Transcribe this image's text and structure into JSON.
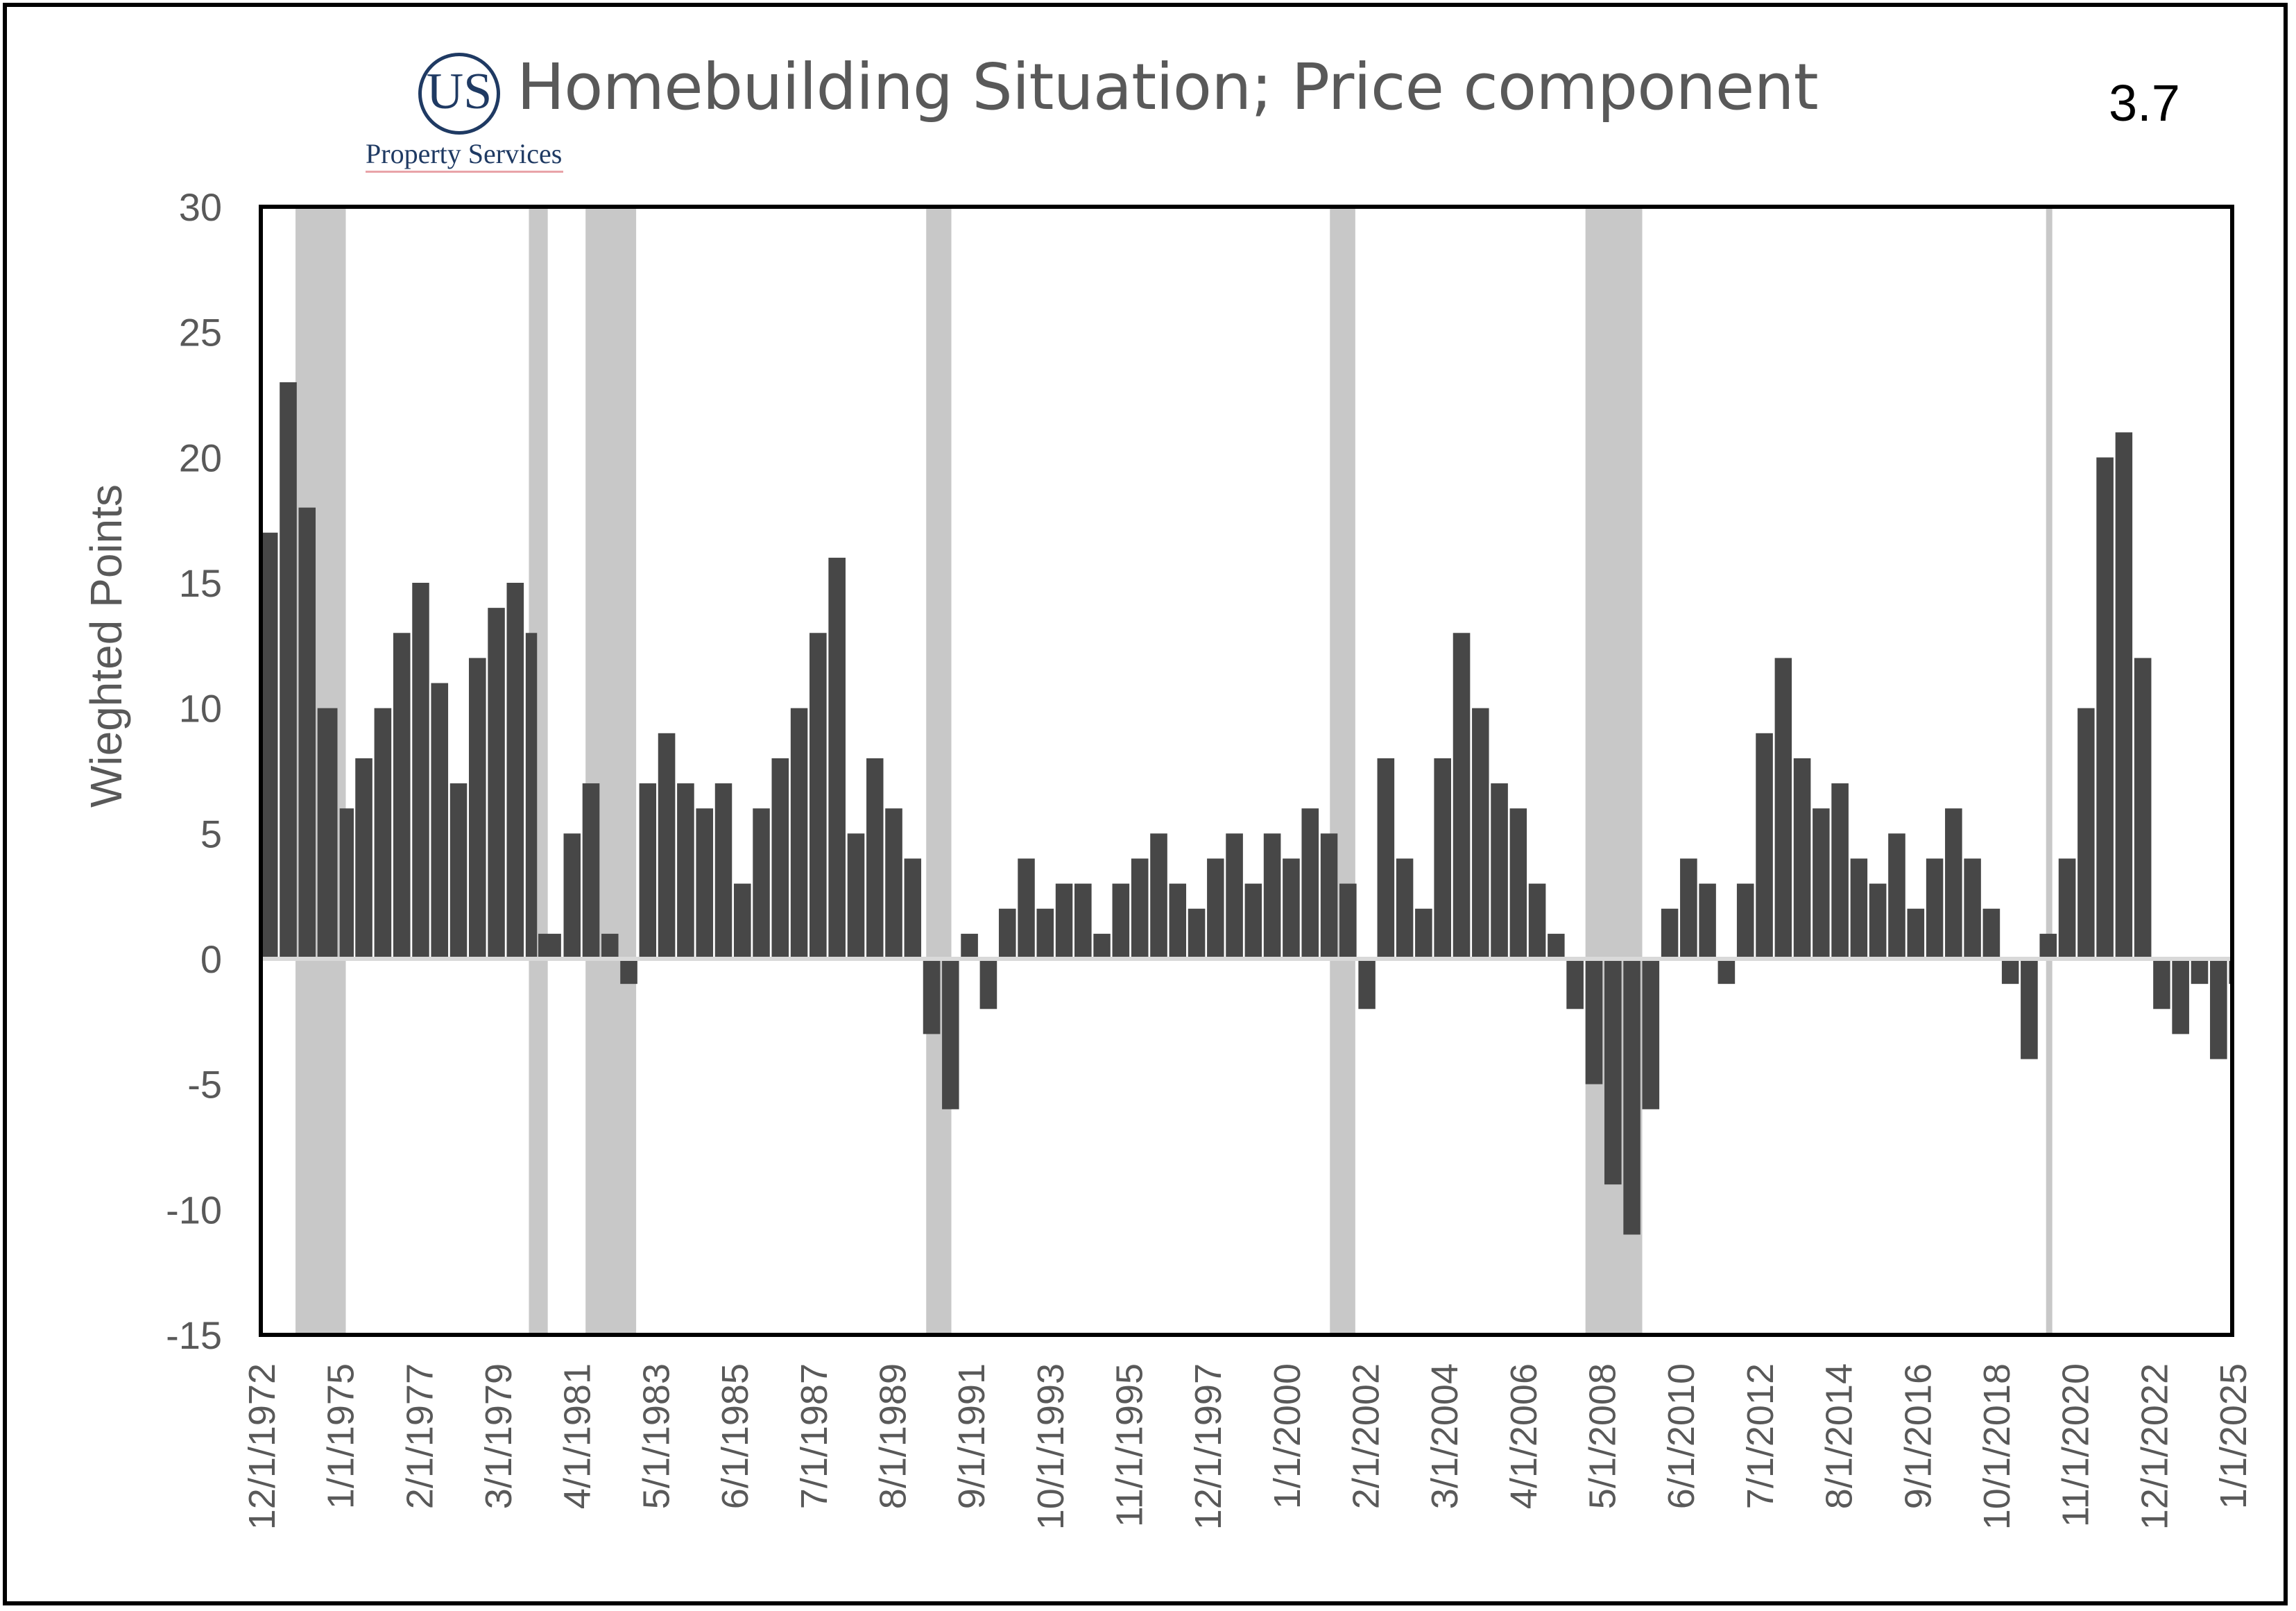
{
  "title": "Homebuilding Situation; Price component",
  "corner_value": "3.7",
  "logo": {
    "mark": "US",
    "text": "Property Services"
  },
  "colors": {
    "bars": "#474747",
    "recession": "#c8c8c8",
    "zero_line": "#d9d9d9",
    "title": "#595959",
    "logo": "#1f3a63"
  },
  "chart_data": {
    "type": "bar",
    "title": "Homebuilding Situation; Price component",
    "xlabel": "",
    "ylabel": "Wieghted Points",
    "ylim": [
      -15,
      30
    ],
    "yticks": [
      30,
      25,
      20,
      15,
      10,
      5,
      0,
      -5,
      -10,
      -15
    ],
    "grid": false,
    "x_start": "12/1/1972",
    "x_end": "1/1/2025",
    "xtick_labels": [
      "12/1/1972",
      "1/1/1975",
      "2/1/1977",
      "3/1/1979",
      "4/1/1981",
      "5/1/1983",
      "6/1/1985",
      "7/1/1987",
      "8/1/1989",
      "9/1/1991",
      "10/1/1993",
      "11/1/1995",
      "12/1/1997",
      "1/1/2000",
      "2/1/2002",
      "3/1/2004",
      "4/1/2006",
      "5/1/2008",
      "6/1/2010",
      "7/1/2012",
      "8/1/2014",
      "9/1/2016",
      "10/1/2018",
      "11/1/2020",
      "12/1/2022",
      "1/1/2025"
    ],
    "recession_bands": [
      [
        "11/1/1973",
        "3/1/1975"
      ],
      [
        "1/1/1980",
        "7/1/1980"
      ],
      [
        "7/1/1981",
        "11/1/1982"
      ],
      [
        "7/1/1990",
        "3/1/1991"
      ],
      [
        "3/1/2001",
        "11/1/2001"
      ],
      [
        "12/1/2007",
        "6/1/2009"
      ],
      [
        "2/1/2020",
        "4/1/2020"
      ]
    ],
    "series": [
      {
        "values": [
          {
            "x": "12/1/1972",
            "y": 17
          },
          {
            "x": "6/1/1973",
            "y": 23
          },
          {
            "x": "12/1/1973",
            "y": 18
          },
          {
            "x": "6/1/1974",
            "y": 10
          },
          {
            "x": "1/1/1975",
            "y": 6
          },
          {
            "x": "6/1/1975",
            "y": 8
          },
          {
            "x": "12/1/1975",
            "y": 10
          },
          {
            "x": "6/1/1976",
            "y": 13
          },
          {
            "x": "12/1/1976",
            "y": 15
          },
          {
            "x": "6/1/1977",
            "y": 11
          },
          {
            "x": "12/1/1977",
            "y": 7
          },
          {
            "x": "6/1/1978",
            "y": 12
          },
          {
            "x": "12/1/1978",
            "y": 14
          },
          {
            "x": "6/1/1979",
            "y": 15
          },
          {
            "x": "12/1/1979",
            "y": 13
          },
          {
            "x": "4/1/1980",
            "y": 1
          },
          {
            "x": "12/1/1980",
            "y": 5
          },
          {
            "x": "6/1/1981",
            "y": 7
          },
          {
            "x": "12/1/1981",
            "y": 1
          },
          {
            "x": "6/1/1982",
            "y": -1
          },
          {
            "x": "12/1/1982",
            "y": 7
          },
          {
            "x": "6/1/1983",
            "y": 9
          },
          {
            "x": "12/1/1983",
            "y": 7
          },
          {
            "x": "6/1/1984",
            "y": 6
          },
          {
            "x": "12/1/1984",
            "y": 7
          },
          {
            "x": "6/1/1985",
            "y": 3
          },
          {
            "x": "12/1/1985",
            "y": 6
          },
          {
            "x": "6/1/1986",
            "y": 8
          },
          {
            "x": "12/1/1986",
            "y": 10
          },
          {
            "x": "6/1/1987",
            "y": 13
          },
          {
            "x": "12/1/1987",
            "y": 16
          },
          {
            "x": "6/1/1988",
            "y": 5
          },
          {
            "x": "12/1/1988",
            "y": 8
          },
          {
            "x": "6/1/1989",
            "y": 6
          },
          {
            "x": "12/1/1989",
            "y": 4
          },
          {
            "x": "6/1/1990",
            "y": -3
          },
          {
            "x": "12/1/1990",
            "y": -6
          },
          {
            "x": "6/1/1991",
            "y": 1
          },
          {
            "x": "12/1/1991",
            "y": -2
          },
          {
            "x": "6/1/1992",
            "y": 2
          },
          {
            "x": "12/1/1992",
            "y": 4
          },
          {
            "x": "6/1/1993",
            "y": 2
          },
          {
            "x": "12/1/1993",
            "y": 3
          },
          {
            "x": "6/1/1994",
            "y": 3
          },
          {
            "x": "12/1/1994",
            "y": 1
          },
          {
            "x": "6/1/1995",
            "y": 3
          },
          {
            "x": "12/1/1995",
            "y": 4
          },
          {
            "x": "6/1/1996",
            "y": 5
          },
          {
            "x": "12/1/1996",
            "y": 3
          },
          {
            "x": "6/1/1997",
            "y": 2
          },
          {
            "x": "12/1/1997",
            "y": 4
          },
          {
            "x": "6/1/1998",
            "y": 5
          },
          {
            "x": "12/1/1998",
            "y": 3
          },
          {
            "x": "6/1/1999",
            "y": 5
          },
          {
            "x": "12/1/1999",
            "y": 4
          },
          {
            "x": "6/1/2000",
            "y": 6
          },
          {
            "x": "12/1/2000",
            "y": 5
          },
          {
            "x": "6/1/2001",
            "y": 3
          },
          {
            "x": "12/1/2001",
            "y": -2
          },
          {
            "x": "6/1/2002",
            "y": 8
          },
          {
            "x": "12/1/2002",
            "y": 4
          },
          {
            "x": "6/1/2003",
            "y": 2
          },
          {
            "x": "12/1/2003",
            "y": 8
          },
          {
            "x": "6/1/2004",
            "y": 13
          },
          {
            "x": "12/1/2004",
            "y": 10
          },
          {
            "x": "6/1/2005",
            "y": 7
          },
          {
            "x": "12/1/2005",
            "y": 6
          },
          {
            "x": "6/1/2006",
            "y": 3
          },
          {
            "x": "12/1/2006",
            "y": 1
          },
          {
            "x": "6/1/2007",
            "y": -2
          },
          {
            "x": "12/1/2007",
            "y": -5
          },
          {
            "x": "6/1/2008",
            "y": -9
          },
          {
            "x": "12/1/2008",
            "y": -11
          },
          {
            "x": "6/1/2009",
            "y": -6
          },
          {
            "x": "12/1/2009",
            "y": 2
          },
          {
            "x": "6/1/2010",
            "y": 4
          },
          {
            "x": "12/1/2010",
            "y": 3
          },
          {
            "x": "6/1/2011",
            "y": -1
          },
          {
            "x": "12/1/2011",
            "y": 3
          },
          {
            "x": "6/1/2012",
            "y": 9
          },
          {
            "x": "12/1/2012",
            "y": 12
          },
          {
            "x": "6/1/2013",
            "y": 8
          },
          {
            "x": "12/1/2013",
            "y": 6
          },
          {
            "x": "6/1/2014",
            "y": 7
          },
          {
            "x": "12/1/2014",
            "y": 4
          },
          {
            "x": "6/1/2015",
            "y": 3
          },
          {
            "x": "12/1/2015",
            "y": 5
          },
          {
            "x": "6/1/2016",
            "y": 2
          },
          {
            "x": "12/1/2016",
            "y": 4
          },
          {
            "x": "6/1/2017",
            "y": 6
          },
          {
            "x": "12/1/2017",
            "y": 4
          },
          {
            "x": "6/1/2018",
            "y": 2
          },
          {
            "x": "12/1/2018",
            "y": -1
          },
          {
            "x": "6/1/2019",
            "y": -4
          },
          {
            "x": "12/1/2019",
            "y": 1
          },
          {
            "x": "6/1/2020",
            "y": 4
          },
          {
            "x": "12/1/2020",
            "y": 10
          },
          {
            "x": "6/1/2021",
            "y": 20
          },
          {
            "x": "12/1/2021",
            "y": 21
          },
          {
            "x": "6/1/2022",
            "y": 12
          },
          {
            "x": "12/1/2022",
            "y": -2
          },
          {
            "x": "6/1/2023",
            "y": -3
          },
          {
            "x": "12/1/2023",
            "y": -1
          },
          {
            "x": "6/1/2024",
            "y": -4
          },
          {
            "x": "12/1/2024",
            "y": -1
          }
        ]
      }
    ]
  }
}
